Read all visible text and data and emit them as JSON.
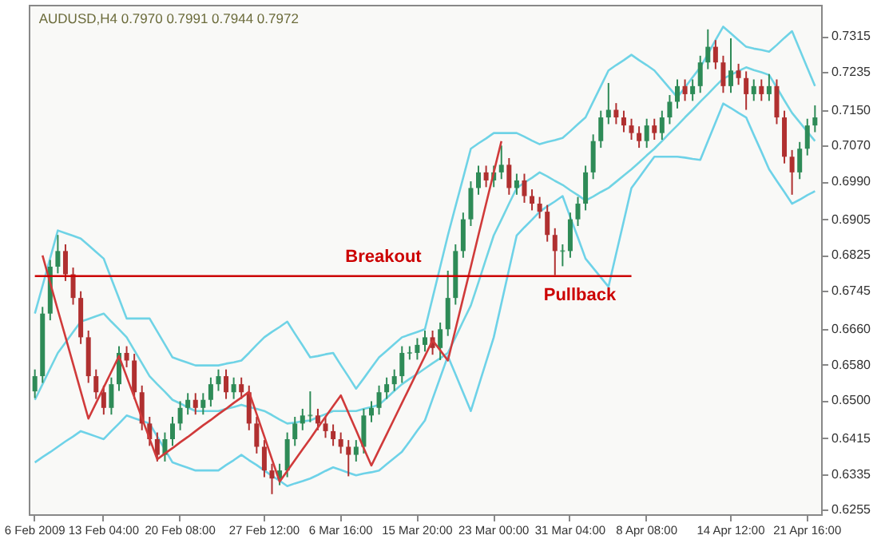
{
  "chart_data": {
    "type": "candlestick",
    "title": "AUDUSD,H4  0.7970 0.7991 0.7944 0.7972",
    "categories": [
      "6 Feb 2009",
      null,
      null,
      null,
      null,
      null,
      null,
      null,
      null,
      "13 Feb 04:00",
      null,
      null,
      null,
      null,
      null,
      null,
      null,
      null,
      null,
      "20 Feb 08:00",
      null,
      null,
      null,
      null,
      null,
      null,
      null,
      null,
      null,
      null,
      "27 Feb 12:00",
      null,
      null,
      null,
      null,
      null,
      null,
      null,
      null,
      null,
      "6 Mar 16:00",
      null,
      null,
      null,
      null,
      null,
      null,
      null,
      null,
      null,
      "15 Mar 20:00",
      null,
      null,
      null,
      null,
      null,
      null,
      null,
      null,
      null,
      "23 Mar 00:00",
      null,
      null,
      null,
      null,
      null,
      null,
      null,
      null,
      null,
      "31 Mar 04:00",
      null,
      null,
      null,
      null,
      null,
      null,
      null,
      null,
      null,
      "8 Apr 08:00",
      null,
      null,
      null,
      null,
      null,
      null,
      null,
      null,
      null,
      null,
      "14 Apr 12:00",
      null,
      null,
      null,
      null,
      null,
      null,
      null,
      null,
      null,
      "21 Apr 16:00",
      null
    ],
    "ylim": [
      0.6245,
      0.7385
    ],
    "yticks": [
      0.6255,
      0.6335,
      0.6415,
      {
        "value": 0.65,
        "label": "0.6500"
      },
      {
        "value": 0.658,
        "label": "0.6580"
      },
      {
        "value": 0.666,
        "label": "0.6660"
      },
      0.6745,
      0.6825,
      0.6905,
      {
        "value": 0.699,
        "label": "0.6990"
      },
      {
        "value": 0.707,
        "label": "0.7070"
      },
      {
        "value": 0.715,
        "label": "0.7150"
      },
      0.7235,
      0.7315
    ],
    "annotations": [
      "Breakout",
      "Pullback"
    ],
    "series": [
      {
        "type": "line",
        "color": "#6fd3e6",
        "values": [
          0.6694,
          0.6756,
          0.6818,
          0.688,
          0.6874,
          0.6868,
          0.6862,
          0.6847,
          0.6832,
          0.6817,
          0.6772,
          0.6728,
          0.6683,
          0.6683,
          0.6683,
          0.6683,
          0.6654,
          0.6625,
          0.6596,
          0.659,
          0.6584,
          0.6578,
          0.6578,
          0.6578,
          0.6578,
          0.6582,
          0.6585,
          0.6589,
          0.6606,
          0.6624,
          0.6641,
          0.6653,
          0.6664,
          0.6676,
          0.6649,
          0.6623,
          0.6596,
          0.6599,
          0.6603,
          0.6606,
          0.6579,
          0.6553,
          0.6526,
          0.6549,
          0.6573,
          0.6596,
          0.6611,
          0.6626,
          0.6641,
          0.6647,
          0.6653,
          0.6659,
          0.6729,
          0.6799,
          0.6869,
          0.6934,
          0.6998,
          0.7063,
          0.7075,
          0.7086,
          0.7098,
          0.7098,
          0.7098,
          0.7098,
          0.709,
          0.7081,
          0.7073,
          0.7078,
          0.7082,
          0.7087,
          0.7102,
          0.7118,
          0.7133,
          0.7168,
          0.7203,
          0.7238,
          0.725,
          0.7261,
          0.7273,
          0.7261,
          0.725,
          0.7238,
          0.7218,
          0.7198,
          0.7178,
          0.72,
          0.7223,
          0.7245,
          0.7275,
          0.7306,
          0.7336,
          0.7321,
          0.7306,
          0.7291,
          0.7287,
          0.7284,
          0.728,
          0.7295,
          0.7311,
          0.7326,
          0.7285,
          0.7244,
          0.7203
        ]
      },
      {
        "type": "line",
        "color": "#70d4e4",
        "values": [
          0.6501,
          0.6536,
          0.6571,
          0.6606,
          0.6629,
          0.6653,
          0.6676,
          0.6682,
          0.6688,
          0.6694,
          0.6676,
          0.6659,
          0.6641,
          0.6612,
          0.6583,
          0.6554,
          0.6536,
          0.6519,
          0.6501,
          0.6493,
          0.6484,
          0.6476,
          0.6476,
          0.6476,
          0.6476,
          0.6481,
          0.6485,
          0.649,
          0.6485,
          0.6481,
          0.6476,
          0.6467,
          0.6457,
          0.6448,
          0.645,
          0.6453,
          0.6455,
          0.6462,
          0.6469,
          0.6476,
          0.6476,
          0.6476,
          0.6476,
          0.6481,
          0.6485,
          0.649,
          0.6505,
          0.6521,
          0.6536,
          0.6548,
          0.6559,
          0.6571,
          0.6583,
          0.6594,
          0.6606,
          0.6641,
          0.6677,
          0.6712,
          0.6764,
          0.6817,
          0.6869,
          0.6904,
          0.694,
          0.6975,
          0.6987,
          0.6998,
          0.701,
          0.7001,
          0.6991,
          0.6982,
          0.697,
          0.6959,
          0.6947,
          0.6956,
          0.6966,
          0.6975,
          0.6989,
          0.7003,
          0.7017,
          0.7032,
          0.7048,
          0.7063,
          0.708,
          0.7098,
          0.7115,
          0.7133,
          0.715,
          0.7168,
          0.7185,
          0.7203,
          0.722,
          0.7228,
          0.7237,
          0.7245,
          0.7239,
          0.7234,
          0.7228,
          0.72,
          0.7171,
          0.7143,
          0.7122,
          0.7101,
          0.708
        ]
      },
      {
        "type": "line",
        "color": "#6ed2e8",
        "values": [
          0.6361,
          0.6373,
          0.6384,
          0.6396,
          0.6408,
          0.6419,
          0.6431,
          0.6425,
          0.6419,
          0.6413,
          0.6431,
          0.6448,
          0.6466,
          0.646,
          0.6454,
          0.6448,
          0.6419,
          0.639,
          0.6361,
          0.6355,
          0.6349,
          0.6343,
          0.6343,
          0.6343,
          0.6343,
          0.6355,
          0.6366,
          0.6378,
          0.6366,
          0.6355,
          0.6343,
          0.6331,
          0.632,
          0.6308,
          0.6314,
          0.6319,
          0.6325,
          0.6333,
          0.6342,
          0.635,
          0.6344,
          0.6338,
          0.6332,
          0.6336,
          0.6339,
          0.6343,
          0.6357,
          0.6371,
          0.6385,
          0.6408,
          0.6432,
          0.6455,
          0.6503,
          0.6551,
          0.6599,
          0.6558,
          0.6517,
          0.6476,
          0.6531,
          0.6586,
          0.6641,
          0.6717,
          0.6793,
          0.6869,
          0.6887,
          0.6904,
          0.6922,
          0.6934,
          0.6945,
          0.6957,
          0.691,
          0.6864,
          0.6817,
          0.6796,
          0.6775,
          0.6754,
          0.6828,
          0.6901,
          0.6975,
          0.6998,
          0.7022,
          0.7045,
          0.7045,
          0.7045,
          0.7045,
          0.7043,
          0.704,
          0.7038,
          0.708,
          0.7122,
          0.7164,
          0.7154,
          0.7143,
          0.7133,
          0.7094,
          0.7056,
          0.7017,
          0.6991,
          0.6966,
          0.694,
          0.6949,
          0.6959,
          0.6968
        ]
      },
      {
        "ohlc": [
          [
            0.652,
            0.6569,
            0.6505,
            0.6554
          ],
          [
            0.6554,
            0.6709,
            0.6539,
            0.6694
          ],
          [
            0.6694,
            0.6814,
            0.6679,
            0.6799
          ],
          [
            0.6799,
            0.687,
            0.6784,
            0.6834
          ],
          [
            0.6834,
            0.6849,
            0.6767,
            0.6782
          ],
          [
            0.6782,
            0.6797,
            0.6714,
            0.6729
          ],
          [
            0.6729,
            0.6744,
            0.6626,
            0.6641
          ],
          [
            0.6641,
            0.6656,
            0.6539,
            0.6554
          ],
          [
            0.6554,
            0.6569,
            0.6503,
            0.6518
          ],
          [
            0.6518,
            0.6533,
            0.6468,
            0.6483
          ],
          [
            0.6483,
            0.6551,
            0.6468,
            0.6536
          ],
          [
            0.6536,
            0.6621,
            0.6521,
            0.6606
          ],
          [
            0.6606,
            0.6621,
            0.6574,
            0.6589
          ],
          [
            0.6589,
            0.6604,
            0.6503,
            0.6518
          ],
          [
            0.6518,
            0.6533,
            0.6433,
            0.6448
          ],
          [
            0.6448,
            0.6463,
            0.6398,
            0.6413
          ],
          [
            0.6413,
            0.6428,
            0.6363,
            0.6378
          ],
          [
            0.6378,
            0.6428,
            0.6363,
            0.6413
          ],
          [
            0.6413,
            0.6463,
            0.6398,
            0.6448
          ],
          [
            0.6448,
            0.6498,
            0.6433,
            0.6483
          ],
          [
            0.6483,
            0.6516,
            0.6468,
            0.6501
          ],
          [
            0.6501,
            0.6516,
            0.6468,
            0.6483
          ],
          [
            0.6483,
            0.6516,
            0.6468,
            0.6501
          ],
          [
            0.6501,
            0.6551,
            0.6486,
            0.6536
          ],
          [
            0.6536,
            0.6569,
            0.6521,
            0.6554
          ],
          [
            0.6554,
            0.6569,
            0.6503,
            0.6518
          ],
          [
            0.6518,
            0.6551,
            0.6503,
            0.6536
          ],
          [
            0.6536,
            0.6551,
            0.6503,
            0.6518
          ],
          [
            0.6518,
            0.6533,
            0.6433,
            0.6448
          ],
          [
            0.6448,
            0.6463,
            0.6381,
            0.6396
          ],
          [
            0.6396,
            0.6411,
            0.6328,
            0.6343
          ],
          [
            0.6343,
            0.6358,
            0.629,
            0.6325
          ],
          [
            0.6325,
            0.6358,
            0.631,
            0.6343
          ],
          [
            0.6343,
            0.6428,
            0.6328,
            0.6413
          ],
          [
            0.6413,
            0.6463,
            0.6398,
            0.6448
          ],
          [
            0.6448,
            0.6481,
            0.6433,
            0.6466
          ],
          [
            0.6466,
            0.652,
            0.6451,
            0.6466
          ],
          [
            0.6466,
            0.6481,
            0.6433,
            0.6448
          ],
          [
            0.6448,
            0.6463,
            0.6416,
            0.6431
          ],
          [
            0.6431,
            0.6446,
            0.6398,
            0.6413
          ],
          [
            0.6413,
            0.6428,
            0.6381,
            0.6396
          ],
          [
            0.6396,
            0.6411,
            0.633,
            0.6378
          ],
          [
            0.6378,
            0.6411,
            0.6363,
            0.6396
          ],
          [
            0.6396,
            0.6481,
            0.6381,
            0.6466
          ],
          [
            0.6466,
            0.6498,
            0.6451,
            0.6483
          ],
          [
            0.6483,
            0.6533,
            0.6468,
            0.6518
          ],
          [
            0.6518,
            0.6551,
            0.6503,
            0.6536
          ],
          [
            0.6536,
            0.6569,
            0.6521,
            0.6554
          ],
          [
            0.6554,
            0.6621,
            0.6539,
            0.6606
          ],
          [
            0.6606,
            0.6621,
            0.6591,
            0.6606
          ],
          [
            0.6606,
            0.6639,
            0.6591,
            0.6624
          ],
          [
            0.6624,
            0.6656,
            0.6609,
            0.6641
          ],
          [
            0.6641,
            0.6656,
            0.6602,
            0.6617
          ],
          [
            0.6617,
            0.6674,
            0.659,
            0.6659
          ],
          [
            0.6659,
            0.679,
            0.6644,
            0.6729
          ],
          [
            0.6729,
            0.6849,
            0.6714,
            0.6834
          ],
          [
            0.6834,
            0.692,
            0.6819,
            0.6905
          ],
          [
            0.6905,
            0.699,
            0.689,
            0.6975
          ],
          [
            0.6975,
            0.7025,
            0.696,
            0.701
          ],
          [
            0.701,
            0.7025,
            0.6977,
            0.6992
          ],
          [
            0.6992,
            0.7025,
            0.6977,
            0.701
          ],
          [
            0.701,
            0.707,
            0.6995,
            0.7027
          ],
          [
            0.7027,
            0.7042,
            0.696,
            0.6975
          ],
          [
            0.6975,
            0.7007,
            0.696,
            0.6992
          ],
          [
            0.6992,
            0.7007,
            0.6942,
            0.6957
          ],
          [
            0.6957,
            0.6972,
            0.6925,
            0.694
          ],
          [
            0.694,
            0.6955,
            0.6907,
            0.6922
          ],
          [
            0.6922,
            0.6937,
            0.6855,
            0.687
          ],
          [
            0.687,
            0.6885,
            0.678,
            0.6834
          ],
          [
            0.6834,
            0.6849,
            0.68,
            0.6834
          ],
          [
            0.6834,
            0.692,
            0.6819,
            0.6905
          ],
          [
            0.6905,
            0.6955,
            0.689,
            0.694
          ],
          [
            0.694,
            0.7025,
            0.6925,
            0.701
          ],
          [
            0.701,
            0.7095,
            0.6995,
            0.708
          ],
          [
            0.708,
            0.7148,
            0.7065,
            0.7133
          ],
          [
            0.7133,
            0.721,
            0.7118,
            0.715
          ],
          [
            0.715,
            0.7165,
            0.7118,
            0.7133
          ],
          [
            0.7133,
            0.7148,
            0.71,
            0.7115
          ],
          [
            0.7115,
            0.713,
            0.7083,
            0.7098
          ],
          [
            0.7098,
            0.7113,
            0.7065,
            0.708
          ],
          [
            0.708,
            0.713,
            0.7065,
            0.7115
          ],
          [
            0.7115,
            0.713,
            0.7083,
            0.7098
          ],
          [
            0.7098,
            0.7148,
            0.7083,
            0.7133
          ],
          [
            0.7133,
            0.7183,
            0.7118,
            0.7168
          ],
          [
            0.7168,
            0.7218,
            0.7153,
            0.7203
          ],
          [
            0.7203,
            0.7218,
            0.717,
            0.7185
          ],
          [
            0.7185,
            0.7218,
            0.717,
            0.7203
          ],
          [
            0.7203,
            0.7271,
            0.7188,
            0.7256
          ],
          [
            0.7256,
            0.733,
            0.7241,
            0.7291
          ],
          [
            0.7291,
            0.7306,
            0.7241,
            0.7256
          ],
          [
            0.7256,
            0.7271,
            0.7188,
            0.7203
          ],
          [
            0.7203,
            0.731,
            0.7188,
            0.7238
          ],
          [
            0.7238,
            0.7253,
            0.7206,
            0.7221
          ],
          [
            0.7221,
            0.7236,
            0.715,
            0.7185
          ],
          [
            0.7185,
            0.7218,
            0.717,
            0.7203
          ],
          [
            0.7203,
            0.7218,
            0.717,
            0.7185
          ],
          [
            0.7185,
            0.723,
            0.717,
            0.7203
          ],
          [
            0.7203,
            0.7218,
            0.7118,
            0.7133
          ],
          [
            0.7133,
            0.7148,
            0.703,
            0.7045
          ],
          [
            0.7045,
            0.706,
            0.696,
            0.701
          ],
          [
            0.701,
            0.7078,
            0.6995,
            0.7063
          ],
          [
            0.7063,
            0.713,
            0.7048,
            0.7115
          ],
          [
            0.7115,
            0.716,
            0.71,
            0.7133
          ]
        ],
        "colors": [
          "#2e8b57",
          "#2e8b57",
          "#2e8b57",
          "#2e8b57",
          "#b03030",
          "#b03030",
          "#b03030",
          "#b03030",
          "#b03030",
          "#b03030",
          "#2e8b57",
          "#2e8b57",
          "#b03030",
          "#b03030",
          "#b03030",
          "#b03030",
          "#b03030",
          "#2e8b57",
          "#2e8b57",
          "#2e8b57",
          "#2e8b57",
          "#b03030",
          "#2e8b57",
          "#2e8b57",
          "#2e8b57",
          "#b03030",
          "#2e8b57",
          "#b03030",
          "#b03030",
          "#b03030",
          "#b03030",
          "#b03030",
          "#2e8b57",
          "#2e8b57",
          "#2e8b57",
          "#2e8b57",
          "#2e8b57",
          "#b03030",
          "#b03030",
          "#b03030",
          "#b03030",
          "#b03030",
          "#2e8b57",
          "#2e8b57",
          "#2e8b57",
          "#2e8b57",
          "#2e8b57",
          "#2e8b57",
          "#2e8b57",
          "#2e8b57",
          "#2e8b57",
          "#2e8b57",
          "#b03030",
          "#2e8b57",
          "#2e8b57",
          "#2e8b57",
          "#2e8b57",
          "#2e8b57",
          "#2e8b57",
          "#b03030",
          "#2e8b57",
          "#2e8b57",
          "#b03030",
          "#2e8b57",
          "#b03030",
          "#b03030",
          "#b03030",
          "#b03030",
          "#b03030",
          "#2e8b57",
          "#2e8b57",
          "#2e8b57",
          "#2e8b57",
          "#2e8b57",
          "#2e8b57",
          "#2e8b57",
          "#b03030",
          "#b03030",
          "#b03030",
          "#b03030",
          "#2e8b57",
          "#b03030",
          "#2e8b57",
          "#2e8b57",
          "#2e8b57",
          "#b03030",
          "#2e8b57",
          "#2e8b57",
          "#2e8b57",
          "#b03030",
          "#b03030",
          "#2e8b57",
          "#b03030",
          "#b03030",
          "#2e8b57",
          "#b03030",
          "#2e8b57",
          "#b03030",
          "#b03030",
          "#b03030",
          "#2e8b57",
          "#2e8b57",
          "#2e8b57"
        ]
      },
      {
        "type": "line",
        "color": "#d03a3a",
        "values": [
          null,
          0.6824,
          0.6763,
          0.6702,
          0.6642,
          0.6581,
          0.652,
          0.6459,
          0.6494,
          0.6529,
          0.6564,
          0.6599,
          0.6553,
          0.6507,
          0.646,
          0.6414,
          0.6368,
          0.6381,
          0.6393,
          0.6406,
          0.6418,
          0.6431,
          0.6444,
          0.6456,
          0.6469,
          0.6481,
          0.6494,
          0.6506,
          0.6519,
          0.6469,
          0.6419,
          0.6368,
          0.6318,
          0.6342,
          0.6366,
          0.639,
          0.6414,
          0.6439,
          0.6463,
          0.6487,
          0.6511,
          0.6472,
          0.6433,
          0.6393,
          0.6354,
          0.6389,
          0.6424,
          0.6459,
          0.6494,
          0.6529,
          0.6564,
          0.6599,
          0.6634,
          0.6612,
          0.6589,
          0.6659,
          0.6729,
          0.6799,
          0.687,
          0.694,
          0.701,
          0.708,
          null,
          null,
          null,
          null,
          null,
          null,
          null,
          null,
          null,
          null,
          null,
          null,
          null,
          null,
          null,
          null,
          null,
          null,
          null,
          null,
          null,
          null,
          null,
          null,
          null,
          null,
          null,
          null,
          null,
          null,
          null,
          null,
          null,
          null,
          null,
          null,
          null,
          null,
          null,
          null,
          null
        ]
      },
      {
        "type": "line",
        "color": "#cc0000",
        "values": [
          0.6778,
          0.6778,
          0.6778,
          0.6778,
          0.6778,
          0.6778,
          0.6778,
          0.6778,
          0.6778,
          0.6778,
          0.6778,
          0.6778,
          0.6778,
          0.6778,
          0.6778,
          0.6778,
          0.6778,
          0.6778,
          0.6778,
          0.6778,
          0.6778,
          0.6778,
          0.6778,
          0.6778,
          0.6778,
          0.6778,
          0.6778,
          0.6778,
          0.6778,
          0.6778,
          0.6778,
          0.6778,
          0.6778,
          0.6778,
          0.6778,
          0.6778,
          0.6778,
          0.6778,
          0.6778,
          0.6778,
          0.6778,
          0.6778,
          0.6778,
          0.6778,
          0.6778,
          0.6778,
          0.6778,
          0.6778,
          0.6778,
          0.6778,
          0.6778,
          0.6778,
          0.6778,
          0.6778,
          0.6778,
          0.6778,
          0.6778,
          0.6778,
          0.6778,
          0.6778,
          0.6778,
          0.6778,
          0.6778,
          0.6778,
          0.6778,
          0.6778,
          0.6778,
          0.6778,
          0.6778,
          0.6778,
          0.6778,
          0.6778,
          0.6778,
          0.6778,
          0.6778,
          0.6778,
          0.6778,
          0.6778,
          0.6778,
          null,
          null,
          null,
          null,
          null,
          null,
          null,
          null,
          null,
          null,
          null,
          null,
          null,
          null,
          null,
          null,
          null,
          null,
          null,
          null,
          null,
          null,
          null,
          null
        ]
      }
    ]
  }
}
